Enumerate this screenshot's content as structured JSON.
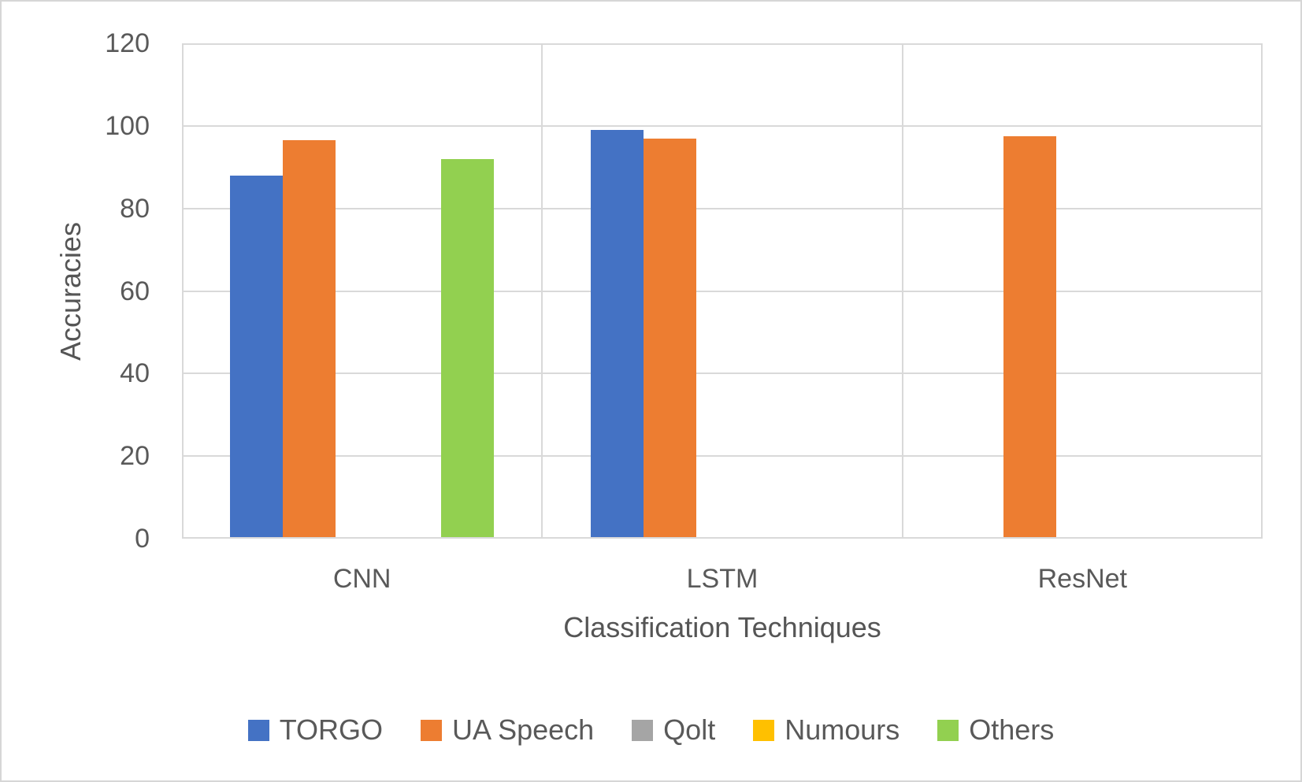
{
  "chart_data": {
    "type": "bar",
    "title": "",
    "xlabel": "Classification Techniques",
    "ylabel": "Accuracies",
    "categories": [
      "CNN",
      "LSTM",
      "ResNet"
    ],
    "series": [
      {
        "name": "TORGO",
        "color": "#4472C4",
        "values": [
          88,
          99,
          null
        ]
      },
      {
        "name": "UA Speech",
        "color": "#ED7D31",
        "values": [
          96.5,
          97,
          97.5
        ]
      },
      {
        "name": "Qolt",
        "color": "#A5A5A5",
        "values": [
          null,
          null,
          null
        ]
      },
      {
        "name": "Numours",
        "color": "#FFC000",
        "values": [
          null,
          null,
          null
        ]
      },
      {
        "name": "Others",
        "color": "#92D050",
        "values": [
          92,
          null,
          null
        ]
      }
    ],
    "ylim": [
      0,
      120
    ],
    "yticks": [
      0,
      20,
      40,
      60,
      80,
      100,
      120
    ],
    "grid": true,
    "legend_position": "bottom"
  },
  "colors": {
    "text": "#595959",
    "gridline": "#D9D9D9",
    "background": "#FFFFFF",
    "frame_border": "#D6D6D6"
  }
}
